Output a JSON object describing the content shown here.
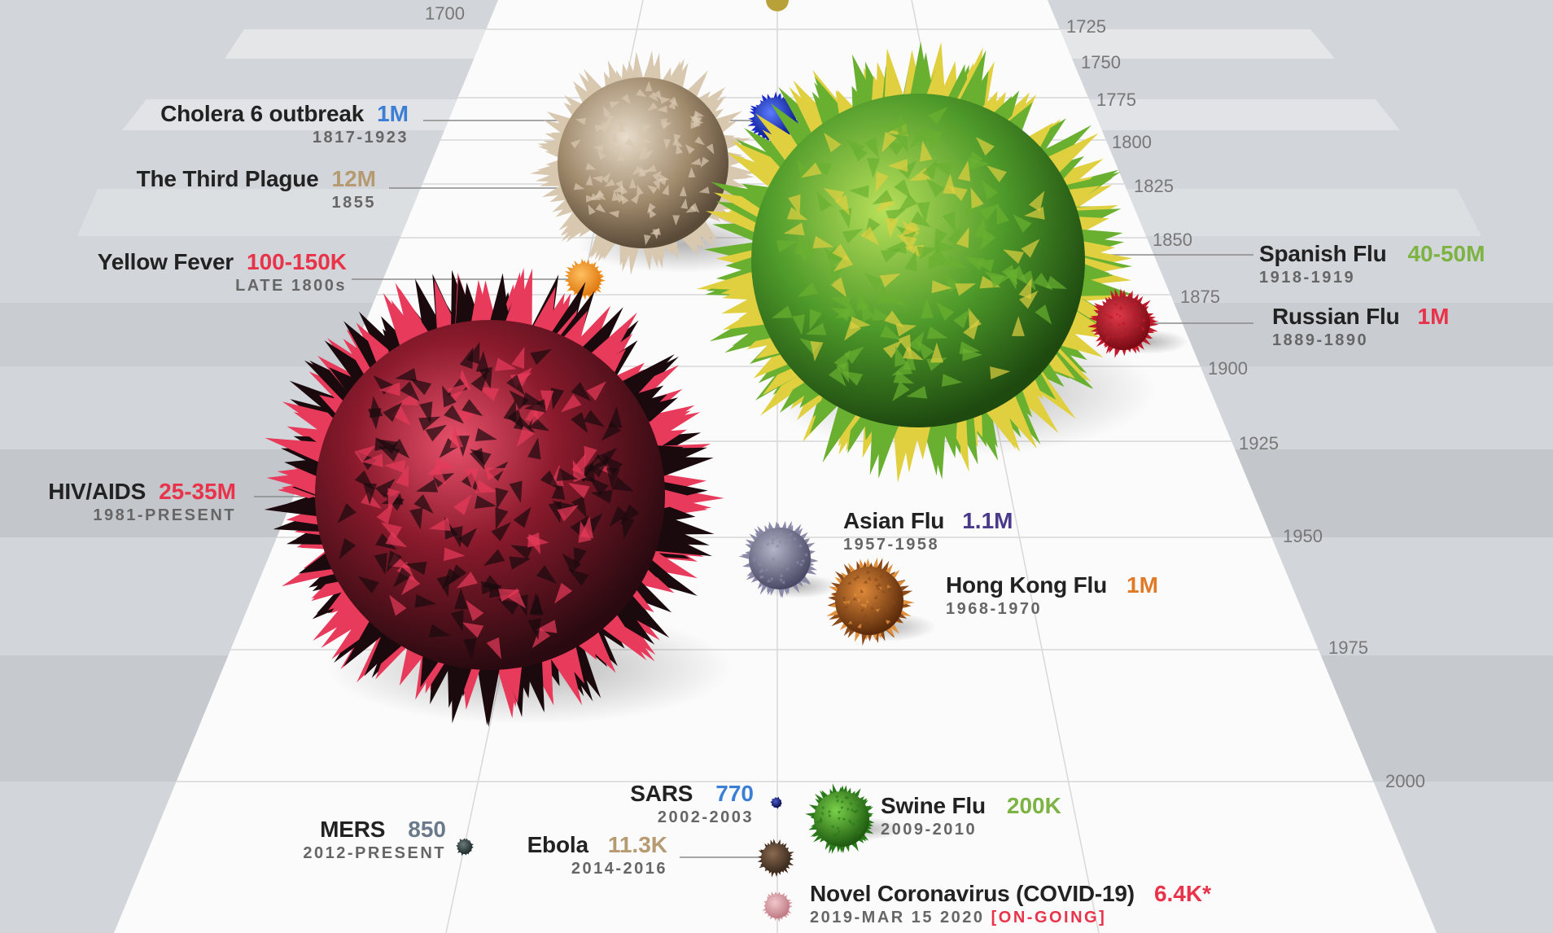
{
  "years": [
    "1700",
    "1725",
    "1750",
    "1775",
    "1800",
    "1825",
    "1850",
    "1875",
    "1900",
    "1925",
    "1950",
    "1975",
    "2000"
  ],
  "colors": {
    "cholera": "#3a7fd5",
    "plague": "#b59a72",
    "yellow_fever": "#e8334a",
    "hiv": "#e8334a",
    "spanish_flu": "#7cb342",
    "russian_flu": "#e8334a",
    "asian_flu": "#4a3a8a",
    "hong_kong": "#e07a28",
    "sars": "#3a7fd5",
    "mers": "#6b7a8a",
    "swine": "#7cb342",
    "ebola": "#b59a72",
    "covid": "#e8334a"
  },
  "pandemics": {
    "cholera": {
      "name": "Cholera 6 outbreak",
      "value": "1M",
      "dates": "1817-1923"
    },
    "plague": {
      "name": "The Third Plague",
      "value": "12M",
      "dates": "1855"
    },
    "yellow_fever": {
      "name": "Yellow Fever",
      "value": "100-150K",
      "dates": "LATE 1800s"
    },
    "hiv": {
      "name": "HIV/AIDS",
      "value": "25-35M",
      "dates": "1981-PRESENT"
    },
    "spanish_flu": {
      "name": "Spanish Flu",
      "value": "40-50M",
      "dates": "1918-1919"
    },
    "russian_flu": {
      "name": "Russian Flu",
      "value": "1M",
      "dates": "1889-1890"
    },
    "asian_flu": {
      "name": "Asian Flu",
      "value": "1.1M",
      "dates": "1957-1958"
    },
    "hong_kong": {
      "name": "Hong Kong Flu",
      "value": "1M",
      "dates": "1968-1970"
    },
    "sars": {
      "name": "SARS",
      "value": "770",
      "dates": "2002-2003"
    },
    "mers": {
      "name": "MERS",
      "value": "850",
      "dates": "2012-PRESENT"
    },
    "swine": {
      "name": "Swine Flu",
      "value": "200K",
      "dates": "2009-2010"
    },
    "ebola": {
      "name": "Ebola",
      "value": "11.3K",
      "dates": "2014-2016"
    },
    "covid": {
      "name": "Novel Coronavirus (COVID-19)",
      "value": "6.4K*",
      "dates": "2019-MAR 15 2020",
      "ongoing": "[ON-GOING]"
    }
  }
}
